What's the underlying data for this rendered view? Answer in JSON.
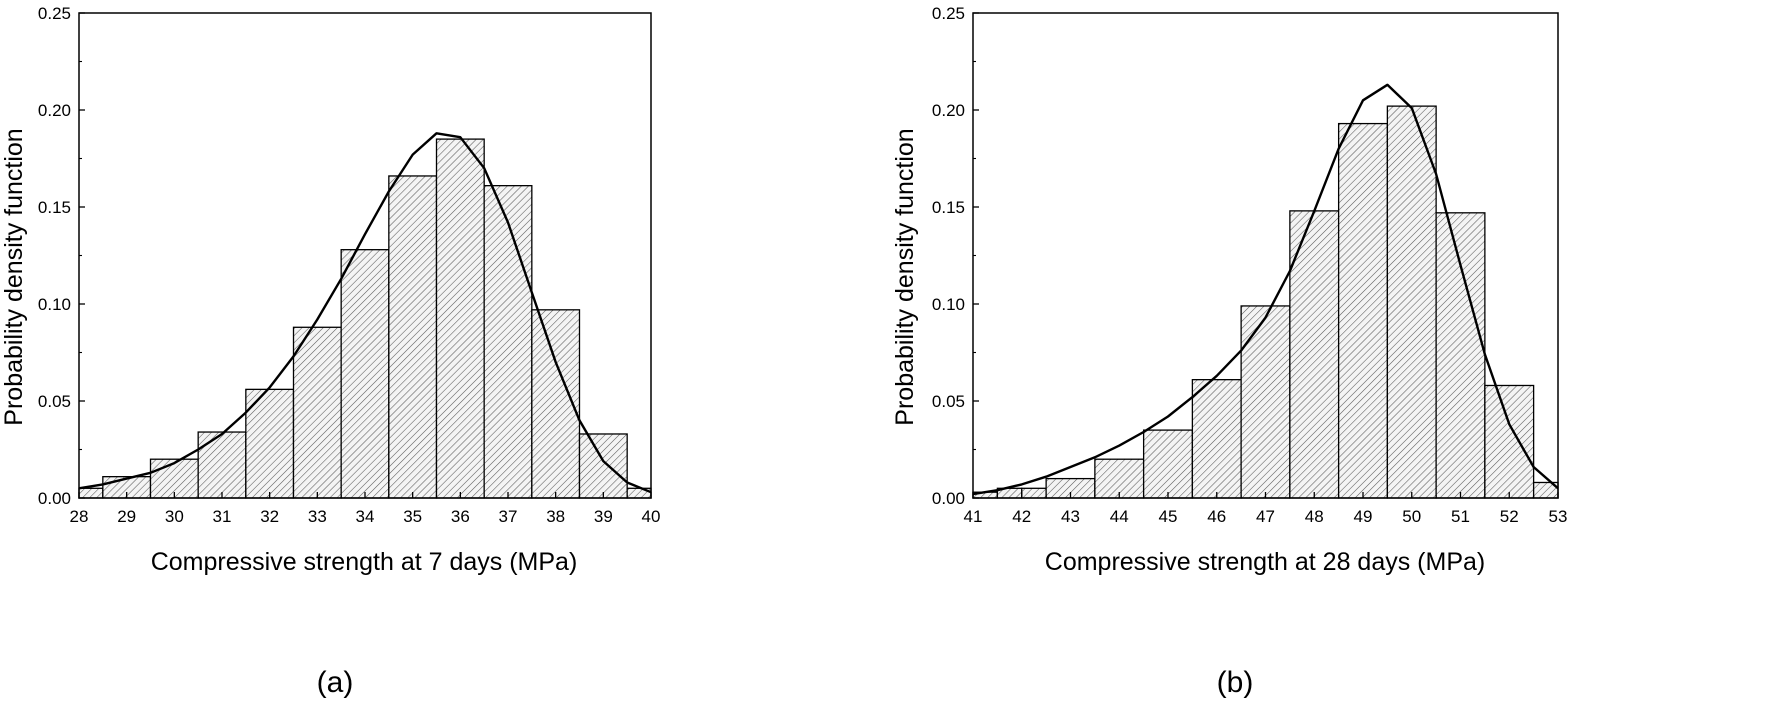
{
  "colors": {
    "bar_fill": "#f4f4f4",
    "hatch": "#5a5a5a",
    "curve": "#000000",
    "axis": "#000000"
  },
  "chart_data": [
    {
      "type": "bar",
      "panel_label": "(a)",
      "xlabel": "Compressive strength at 7 days (MPa)",
      "ylabel": "Probability density function",
      "xlim": [
        28,
        40
      ],
      "ylim": [
        0,
        0.25
      ],
      "x_ticks": [
        "28",
        "29",
        "30",
        "31",
        "32",
        "33",
        "34",
        "35",
        "36",
        "37",
        "38",
        "39",
        "40"
      ],
      "y_ticks": [
        "0.00",
        "0.05",
        "0.10",
        "0.15",
        "0.20",
        "0.25"
      ],
      "bin_edges": [
        28,
        28.5,
        29.5,
        30.5,
        31.5,
        32.5,
        33.5,
        34.5,
        35.5,
        36.5,
        37.5,
        38.5,
        39.5,
        40
      ],
      "values": [
        0.005,
        0.011,
        0.02,
        0.034,
        0.056,
        0.088,
        0.128,
        0.166,
        0.185,
        0.161,
        0.097,
        0.033,
        0.005
      ],
      "fit_curve": {
        "x": [
          28,
          28.5,
          29,
          29.5,
          30,
          30.5,
          31,
          31.5,
          32,
          32.5,
          33,
          33.5,
          34,
          34.5,
          35,
          35.5,
          36,
          36.5,
          37,
          37.5,
          38,
          38.5,
          39,
          39.5,
          40
        ],
        "y": [
          0.005,
          0.007,
          0.01,
          0.013,
          0.018,
          0.025,
          0.033,
          0.044,
          0.057,
          0.073,
          0.092,
          0.113,
          0.136,
          0.158,
          0.177,
          0.188,
          0.186,
          0.17,
          0.142,
          0.106,
          0.07,
          0.04,
          0.019,
          0.008,
          0.003
        ]
      },
      "grid": false,
      "legend": "none"
    },
    {
      "type": "bar",
      "panel_label": "(b)",
      "xlabel": "Compressive strength at 28 days (MPa)",
      "ylabel": "Probability density function",
      "xlim": [
        41,
        53
      ],
      "ylim": [
        0,
        0.25
      ],
      "x_ticks": [
        "41",
        "42",
        "43",
        "44",
        "45",
        "46",
        "47",
        "48",
        "49",
        "50",
        "51",
        "52",
        "53"
      ],
      "y_ticks": [
        "0.00",
        "0.05",
        "0.10",
        "0.15",
        "0.20",
        "0.25"
      ],
      "bin_edges": [
        41,
        41.5,
        42,
        42.5,
        43.5,
        44.5,
        45.5,
        46.5,
        47.5,
        48.5,
        49.5,
        50.5,
        51.5,
        52.5,
        53
      ],
      "values": [
        0.003,
        0.005,
        0.005,
        0.01,
        0.02,
        0.035,
        0.061,
        0.099,
        0.148,
        0.193,
        0.202,
        0.147,
        0.058,
        0.008
      ],
      "fit_curve": {
        "x": [
          41,
          41.5,
          42,
          42.5,
          43,
          43.5,
          44,
          44.5,
          45,
          45.5,
          46,
          46.5,
          47,
          47.5,
          48,
          48.5,
          49,
          49.5,
          50,
          50.5,
          51,
          51.5,
          52,
          52.5,
          53
        ],
        "y": [
          0.002,
          0.004,
          0.007,
          0.011,
          0.016,
          0.021,
          0.027,
          0.034,
          0.042,
          0.052,
          0.063,
          0.076,
          0.093,
          0.117,
          0.148,
          0.18,
          0.205,
          0.213,
          0.201,
          0.167,
          0.12,
          0.074,
          0.038,
          0.016,
          0.005
        ]
      },
      "grid": false,
      "legend": "none"
    }
  ]
}
